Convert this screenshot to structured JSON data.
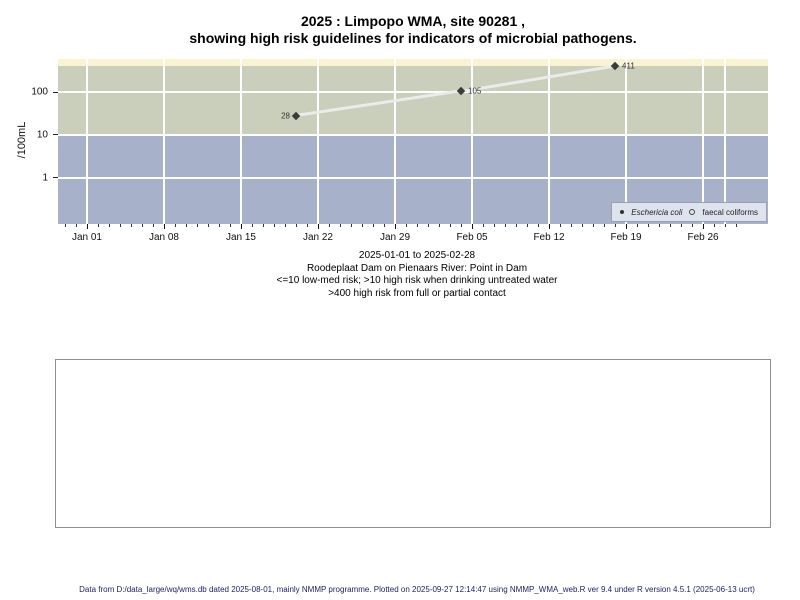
{
  "title": {
    "line1": "2025 : Limpopo WMA, site 90281 ,",
    "line2": "showing high risk guidelines for indicators of microbial pathogens."
  },
  "chart_data": {
    "type": "line",
    "x_range": [
      "2025-01-01",
      "2025-02-28"
    ],
    "y_axis": {
      "label": "/100mL",
      "scale": "log",
      "ticks": [
        1,
        10,
        100
      ]
    },
    "x_ticks": [
      {
        "label": "Jan 01",
        "day": 1
      },
      {
        "label": "Jan 08",
        "day": 8
      },
      {
        "label": "Jan 15",
        "day": 15
      },
      {
        "label": "Jan 22",
        "day": 22
      },
      {
        "label": "Jan 29",
        "day": 29
      },
      {
        "label": "Feb 05",
        "day": 36
      },
      {
        "label": "Feb 12",
        "day": 43
      },
      {
        "label": "Feb 19",
        "day": 50
      },
      {
        "label": "Feb 26",
        "day": 57
      }
    ],
    "extra_gridline_days": [
      59
    ],
    "guidelines": {
      "low_med_max": 10,
      "high_risk_contact": 400
    },
    "bands": [
      {
        "name": "low-med risk",
        "from": null,
        "to": 10,
        "color": "#a7b1c9"
      },
      {
        "name": "high risk drinking untreated water",
        "from": 10,
        "to": 400,
        "color": "#c9cfba"
      },
      {
        "name": "high risk full or partial contact",
        "from": 400,
        "to": null,
        "color": "#f8f3d1"
      }
    ],
    "series": [
      {
        "name": "Eschericia coli",
        "marker": "filled-diamond",
        "points": [
          {
            "date": "2025-01-20",
            "day": 20,
            "value": 28,
            "label": "28",
            "label_side": "left"
          },
          {
            "date": "2025-02-04",
            "day": 35,
            "value": 105,
            "label": "105",
            "label_side": "right"
          },
          {
            "date": "2025-02-18",
            "day": 49,
            "value": 411,
            "label": "411",
            "label_side": "right"
          }
        ]
      },
      {
        "name": "faecal coliforms",
        "marker": "open-circle",
        "points": []
      }
    ],
    "legend": {
      "position": "bottom-right"
    },
    "line_color": "#ebebeb",
    "marker_color": "#3b3b3b"
  },
  "caption": {
    "lines": [
      "2025-01-01 to 2025-02-28",
      "Roodeplaat Dam on Pienaars River: Point in Dam",
      "<=10 low-med risk; >10 high risk when drinking untreated water",
      ">400 high risk from full or partial contact"
    ]
  },
  "footer": {
    "text": "Data from D:/data_large/wq/wms.db dated 2025-08-01, mainly NMMP programme. Plotted on 2025-09-27 12:14:47 using NMMP_WMA_web.R ver 9.4 under R version 4.5.1 (2025-06-13 ucrt)"
  }
}
